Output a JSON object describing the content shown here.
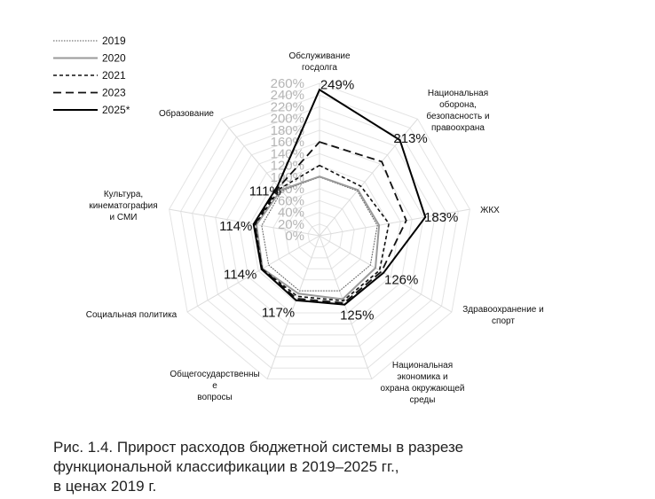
{
  "chart_data": {
    "type": "radar",
    "categories": [
      "Обслуживание госдолга",
      "Национальная оборона, безопасность и правоохрана",
      "ЖКХ",
      "Здравоохранение и спорт",
      "Национальная экономика и охрана окружающей среды",
      "Общегосударственные вопросы",
      "Социальная политика",
      "Культура, кинематография и СМИ",
      "Образование"
    ],
    "category_label_lines": [
      [
        "Обслуживание",
        "госдолга"
      ],
      [
        "Национальная",
        "оборона,",
        "безопасность и",
        "правоохрана"
      ],
      [
        "ЖКХ"
      ],
      [
        "Здравоохранение и",
        "спорт"
      ],
      [
        "Национальная",
        "экономика и",
        "охрана окружающей",
        "среды"
      ],
      [
        "Общегосударственны",
        "е",
        "вопросы"
      ],
      [
        "Социальная политика"
      ],
      [
        "Культура,",
        "кинематография",
        "и СМИ"
      ],
      [
        "Образование"
      ]
    ],
    "rlim": [
      0,
      260
    ],
    "ticks": [
      "0%",
      "20%",
      "40%",
      "60%",
      "80%",
      "100%",
      "120%",
      "140%",
      "160%",
      "180%",
      "200%",
      "220%",
      "240%",
      "260%"
    ],
    "value_labels": [
      "249%",
      "213%",
      "183%",
      "126%",
      "125%",
      "117%",
      "114%",
      "114%",
      "111%"
    ],
    "series": [
      {
        "name": "2019",
        "values": [
          100,
          100,
          100,
          100,
          100,
          100,
          100,
          100,
          100
        ],
        "style": "dotted",
        "color": "#555555"
      },
      {
        "name": "2020",
        "values": [
          101,
          102,
          103,
          110,
          115,
          105,
          112,
          109,
          102
        ],
        "style": "solid-gray",
        "color": "#9a9a9a"
      },
      {
        "name": "2021",
        "values": [
          120,
          110,
          120,
          118,
          118,
          110,
          113,
          111,
          105
        ],
        "style": "short-dash",
        "color": "#111111"
      },
      {
        "name": "2023",
        "values": [
          160,
          165,
          150,
          122,
          122,
          114,
          113,
          112,
          108
        ],
        "style": "long-dash",
        "color": "#111111"
      },
      {
        "name": "2025*",
        "values": [
          249,
          213,
          183,
          126,
          125,
          117,
          114,
          114,
          111
        ],
        "style": "solid-bold",
        "color": "#000000"
      }
    ],
    "grid": true,
    "legend": "top-left"
  },
  "caption_lines": [
    "Рис. 1.4. Прирост расходов бюджетной системы в разрезе",
    "функциональной классификации в 2019–2025 гг.,",
    "в ценах 2019 г."
  ]
}
